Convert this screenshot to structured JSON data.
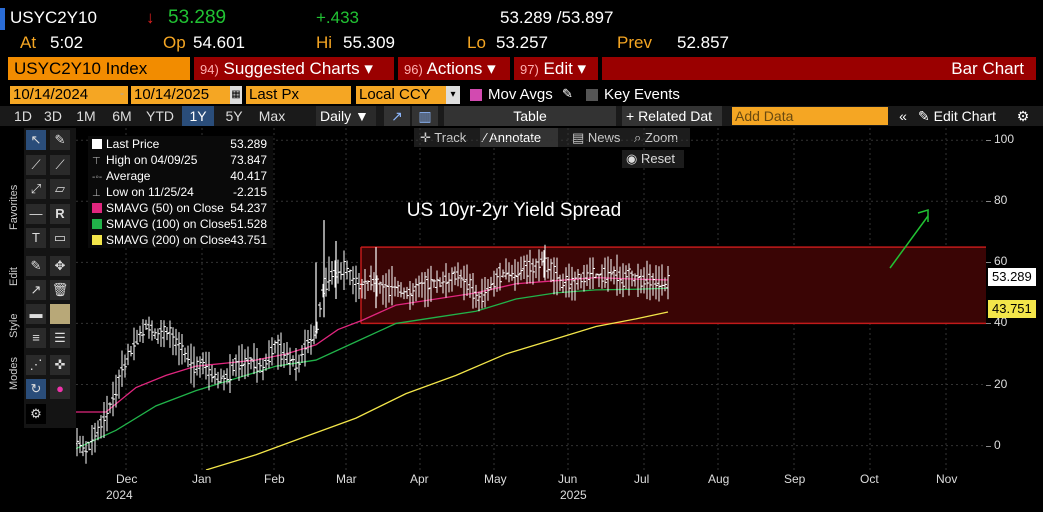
{
  "header": {
    "ticker": "USYC2Y10",
    "arrow": "↓",
    "last": "53.289",
    "change": "+.433",
    "bidask": "53.289 /53.897",
    "at_label": "At",
    "at_value": "5:02",
    "op_label": "Op",
    "op_value": "54.601",
    "hi_label": "Hi",
    "hi_value": "55.309",
    "lo_label": "Lo",
    "lo_value": "53.257",
    "prev_label": "Prev",
    "prev_value": "52.857"
  },
  "menubar": {
    "security": "USYC2Y10 Index",
    "suggested_num": "94)",
    "suggested": "Suggested Charts ▾",
    "actions_num": "96)",
    "actions": "Actions ▾",
    "edit_num": "97)",
    "edit": "Edit ▾",
    "chart_type": "Bar Chart"
  },
  "controls": {
    "start_date": "10/14/2024",
    "end_date": "10/14/2025",
    "price_field": "Last Px",
    "currency": "Local CCY",
    "mov_avgs": "Mov Avgs",
    "key_events": "Key Events"
  },
  "toolbar": {
    "periods": [
      "1D",
      "3D",
      "1M",
      "6M",
      "YTD",
      "1Y",
      "5Y",
      "Max"
    ],
    "selected_period": "1Y",
    "frequency": "Daily ▼",
    "table": "Table",
    "related": "+ Related Dat",
    "add_data_placeholder": "Add Data",
    "edit_chart": "Edit Chart"
  },
  "annotate_bar": {
    "track": "Track",
    "annotate": "Annotate",
    "news": "News",
    "zoom": "Zoom",
    "reset": "Reset"
  },
  "side_tabs": {
    "favorites": "Favorites",
    "edit": "Edit",
    "style": "Style",
    "modes": "Modes"
  },
  "legend": [
    {
      "label": "Last Price",
      "value": "53.289",
      "color": "#ffffff"
    },
    {
      "label": "High on 04/09/25",
      "value": "73.847",
      "color": ""
    },
    {
      "label": "Average",
      "value": "40.417",
      "color": ""
    },
    {
      "label": "Low on 11/25/24",
      "value": "-2.215",
      "color": ""
    },
    {
      "label": "SMAVG (50)  on Close",
      "value": "54.237",
      "color": "#e0267e"
    },
    {
      "label": "SMAVG (100)  on Close",
      "value": "51.528",
      "color": "#21b34a"
    },
    {
      "label": "SMAVG (200)  on Close",
      "value": "43.751",
      "color": "#f3e64a"
    }
  ],
  "chart_data": {
    "type": "bar",
    "title": "US 10yr-2yr Yield Spread",
    "x_tick_labels": [
      "Dec",
      "Jan",
      "Feb",
      "Mar",
      "Apr",
      "May",
      "Jun",
      "Jul",
      "Aug",
      "Sep",
      "Oct",
      "Nov"
    ],
    "year_labels": [
      "2024",
      "2025"
    ],
    "y_ticks": [
      0,
      20,
      40,
      60,
      80,
      100
    ],
    "ylim": [
      -8,
      104
    ],
    "channel": {
      "upper": 65,
      "lower": 40
    },
    "price_path": [
      [
        0,
        2
      ],
      [
        10,
        -2
      ],
      [
        20,
        4
      ],
      [
        30,
        10
      ],
      [
        40,
        18
      ],
      [
        50,
        28
      ],
      [
        60,
        34
      ],
      [
        72,
        40
      ],
      [
        82,
        36
      ],
      [
        92,
        38
      ],
      [
        100,
        33
      ],
      [
        108,
        30
      ],
      [
        118,
        26
      ],
      [
        128,
        27
      ],
      [
        140,
        22
      ],
      [
        152,
        22
      ],
      [
        160,
        27
      ],
      [
        168,
        27
      ],
      [
        178,
        28
      ],
      [
        186,
        25
      ],
      [
        198,
        33
      ],
      [
        208,
        30
      ],
      [
        222,
        27
      ],
      [
        232,
        34
      ],
      [
        240,
        36
      ],
      [
        246,
        50
      ],
      [
        252,
        55
      ],
      [
        258,
        56
      ],
      [
        266,
        58
      ],
      [
        276,
        56
      ],
      [
        286,
        52
      ],
      [
        296,
        54
      ],
      [
        310,
        51
      ],
      [
        320,
        53
      ],
      [
        332,
        49
      ],
      [
        344,
        52
      ],
      [
        356,
        53
      ],
      [
        370,
        54
      ],
      [
        382,
        56
      ],
      [
        392,
        53
      ],
      [
        402,
        48
      ],
      [
        410,
        50
      ],
      [
        420,
        54
      ],
      [
        428,
        57
      ],
      [
        438,
        56
      ],
      [
        448,
        58
      ],
      [
        458,
        58
      ],
      [
        466,
        61
      ],
      [
        474,
        58
      ],
      [
        486,
        53
      ],
      [
        496,
        53
      ],
      [
        506,
        55
      ],
      [
        516,
        56
      ],
      [
        526,
        55
      ],
      [
        536,
        57
      ],
      [
        546,
        55
      ],
      [
        555,
        55
      ],
      [
        565,
        54
      ],
      [
        574,
        54
      ],
      [
        584,
        54
      ],
      [
        592,
        53.289
      ]
    ],
    "spikes": [
      [
        240,
        35,
        60
      ],
      [
        248,
        42,
        73.847
      ],
      [
        260,
        48,
        67
      ],
      [
        300,
        45,
        65
      ],
      [
        468,
        55,
        64
      ]
    ],
    "sma50": [
      [
        0,
        11
      ],
      [
        30,
        11
      ],
      [
        60,
        19
      ],
      [
        90,
        23
      ],
      [
        120,
        26
      ],
      [
        150,
        27
      ],
      [
        180,
        28
      ],
      [
        210,
        30
      ],
      [
        240,
        33
      ],
      [
        262,
        38
      ],
      [
        286,
        41
      ],
      [
        320,
        46
      ],
      [
        360,
        48
      ],
      [
        400,
        50
      ],
      [
        440,
        53
      ],
      [
        480,
        54
      ],
      [
        520,
        55
      ],
      [
        560,
        54.5
      ],
      [
        592,
        54.237
      ]
    ],
    "sma100": [
      [
        0,
        -1
      ],
      [
        40,
        5
      ],
      [
        80,
        13
      ],
      [
        120,
        18
      ],
      [
        160,
        22
      ],
      [
        200,
        26
      ],
      [
        240,
        28
      ],
      [
        280,
        34
      ],
      [
        320,
        40
      ],
      [
        360,
        42
      ],
      [
        400,
        44
      ],
      [
        440,
        48
      ],
      [
        480,
        50
      ],
      [
        520,
        51
      ],
      [
        560,
        51.2
      ],
      [
        592,
        51.528
      ]
    ],
    "sma200": [
      [
        130,
        -8
      ],
      [
        180,
        -3
      ],
      [
        230,
        3
      ],
      [
        280,
        9
      ],
      [
        330,
        17
      ],
      [
        380,
        23
      ],
      [
        430,
        30
      ],
      [
        480,
        35
      ],
      [
        520,
        39
      ],
      [
        560,
        41.5
      ],
      [
        592,
        43.751
      ]
    ],
    "last_label": "53.289",
    "sma200_label": "43.751"
  },
  "colors": {
    "accent_orange": "#f28c00",
    "menu_red": "#9a0000",
    "channel_fill": "#3a0505",
    "channel_line": "#c21a1a",
    "arrow_green": "#21c233",
    "price": "#ffffff"
  }
}
